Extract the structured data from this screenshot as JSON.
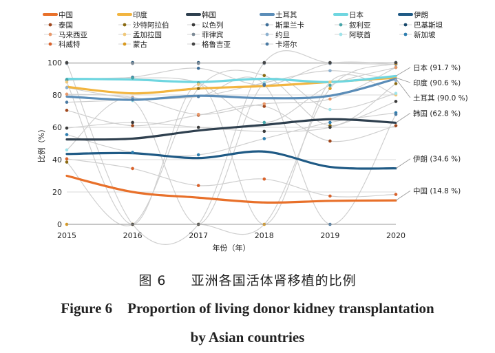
{
  "chart_data": {
    "type": "line",
    "title_cn_number": "图 6",
    "title_cn": "亚洲各国活体肾移植的比例",
    "title_en_number": "Figure 6",
    "title_en_line1": "Proportion of living donor kidney transplantation",
    "title_en_line2": "by Asian countries",
    "xlabel": "年份（年）",
    "ylabel": "比例（%）",
    "x": [
      2015,
      2016,
      2017,
      2018,
      2019,
      2020
    ],
    "ylim": [
      0,
      100
    ],
    "yticks": [
      0,
      20,
      40,
      60,
      80,
      100
    ],
    "legend_position": "top",
    "series": [
      {
        "name": "中国",
        "color": "#e8702a",
        "highlight": true,
        "values": [
          30,
          20,
          16.5,
          13.5,
          14.5,
          14.8
        ],
        "end_label": "中国 (14.8 %)"
      },
      {
        "name": "印度",
        "color": "#f2b540",
        "highlight": true,
        "values": [
          85,
          81,
          84,
          85.5,
          88,
          90.6
        ],
        "end_label": "印度 (90.6 %)"
      },
      {
        "name": "韩国",
        "color": "#2e3f4e",
        "highlight": true,
        "values": [
          52.5,
          53,
          58,
          61.5,
          65,
          62.8
        ],
        "end_label": "韩国 (62.8 %)"
      },
      {
        "name": "土耳其",
        "color": "#5b8db8",
        "highlight": true,
        "values": [
          79,
          77,
          79.5,
          78,
          79.5,
          90
        ],
        "end_label": "土耳其 (90.0 %)"
      },
      {
        "name": "日本",
        "color": "#6fd6e0",
        "highlight": true,
        "values": [
          90,
          89.5,
          88,
          90,
          88,
          91.7
        ],
        "end_label": "日本 (91.7 %)"
      },
      {
        "name": "伊朗",
        "color": "#1f5a85",
        "highlight": true,
        "values": [
          43.5,
          44,
          41,
          45,
          35.5,
          34.6
        ],
        "end_label": "伊朗 (34.6 %)"
      },
      {
        "name": "泰国",
        "color": "#a0471c",
        "highlight": false,
        "values": [
          70.5,
          61,
          67.5,
          73,
          51.5,
          61
        ]
      },
      {
        "name": "沙特阿拉伯",
        "color": "#8a6a12",
        "highlight": false,
        "values": [
          38.5,
          0,
          84,
          92,
          61,
          87
        ]
      },
      {
        "name": "以色列",
        "color": "#3a3a3a",
        "highlight": false,
        "values": [
          59.5,
          63,
          60,
          57.5,
          60,
          76
        ]
      },
      {
        "name": "斯里兰卡",
        "color": "#3d6e98",
        "highlight": false,
        "values": [
          89,
          91,
          96.5,
          86,
          99.5,
          99
        ]
      },
      {
        "name": "叙利亚",
        "color": "#46a5a9",
        "highlight": false,
        "values": [
          89.5,
          90.5,
          87.5,
          63,
          86,
          97
        ]
      },
      {
        "name": "巴基斯坦",
        "color": "#17486b",
        "highlight": false,
        "values": [
          100,
          100,
          100,
          100,
          100,
          100
        ]
      },
      {
        "name": "马来西亚",
        "color": "#e8986a",
        "highlight": false,
        "values": [
          80.5,
          78.5,
          68,
          74.5,
          77.5,
          97
        ]
      },
      {
        "name": "孟加拉国",
        "color": "#f0c87a",
        "highlight": false,
        "values": [
          88,
          0,
          86.5,
          0,
          88,
          80
        ]
      },
      {
        "name": "菲律宾",
        "color": "#7d8a96",
        "highlight": false,
        "values": [
          99.5,
          99.5,
          99.5,
          99.5,
          99.5,
          99
        ]
      },
      {
        "name": "约旦",
        "color": "#8cb0cf",
        "highlight": false,
        "values": [
          84.5,
          78,
          79,
          87.5,
          95,
          89
        ]
      },
      {
        "name": "阿联酋",
        "color": "#9fe3ea",
        "highlight": false,
        "values": [
          46,
          76.5,
          0,
          87.5,
          71,
          81
        ]
      },
      {
        "name": "新加坡",
        "color": "#2f7fb0",
        "highlight": false,
        "values": [
          55.5,
          44.5,
          43,
          53,
          63,
          69
        ]
      },
      {
        "name": "科威特",
        "color": "#d9622b",
        "highlight": false,
        "values": [
          40.5,
          34.5,
          24,
          28,
          17.5,
          18.5
        ]
      },
      {
        "name": "蒙古",
        "color": "#d99a20",
        "highlight": false,
        "values": [
          0,
          0,
          0,
          0,
          84,
          99.5
        ]
      },
      {
        "name": "格鲁吉亚",
        "color": "#454545",
        "highlight": false,
        "values": [
          100,
          0,
          0,
          100,
          100,
          100
        ]
      },
      {
        "name": "卡塔尔",
        "color": "#4a7aa3",
        "highlight": false,
        "values": [
          75.5,
          77,
          79,
          86.5,
          0,
          68
        ]
      }
    ]
  }
}
